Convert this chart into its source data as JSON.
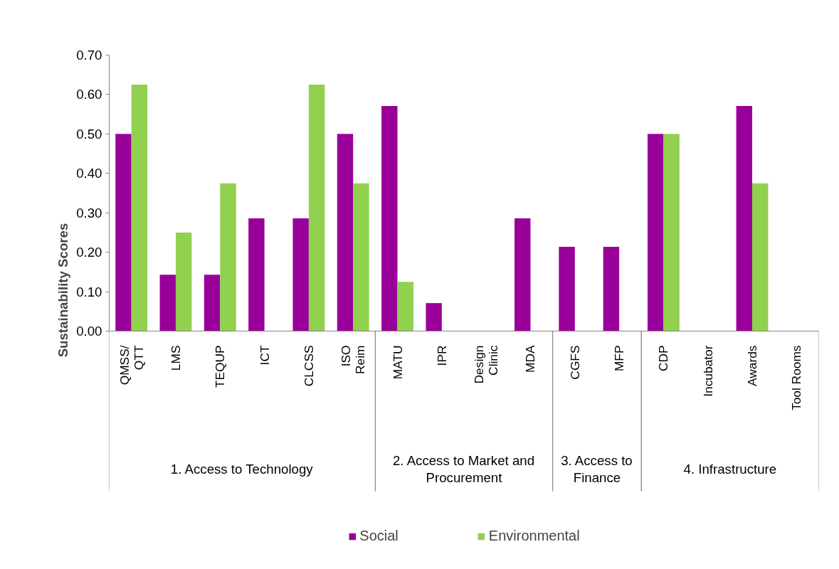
{
  "chart_data": {
    "type": "bar",
    "ylabel": "Sustainability Scores",
    "categories": [
      "QMSS/\nQTT",
      "LMS",
      "TEQUP",
      "ICT",
      "CLCSS",
      "ISO\nReim",
      "MATU",
      "IPR",
      "Design\nClinic",
      "MDA",
      "CGFS",
      "MFP",
      "CDP",
      "Incubator",
      "Awards",
      "Tool Rooms"
    ],
    "series": [
      {
        "name": "Social",
        "color": "#990099",
        "values": [
          0.5,
          0.143,
          0.143,
          0.286,
          0.286,
          0.5,
          0.571,
          0.071,
          0,
          0.286,
          0.214,
          0.214,
          0.5,
          0,
          0.571,
          0
        ]
      },
      {
        "name": "Environmental",
        "color": "#92d050",
        "values": [
          0.625,
          0.25,
          0.375,
          0,
          0.625,
          0.375,
          0.125,
          0,
          0,
          0,
          0,
          0,
          0.5,
          0,
          0.375,
          0
        ]
      }
    ],
    "annotations": [
      "1. Access to Technology",
      "2. Access to Market and\nProcurement",
      "3. Access to\nFinance",
      "4. Infrastructure"
    ],
    "ylim": [
      0,
      0.7
    ],
    "yticks": [
      {
        "value": 0,
        "label": "0.00"
      },
      {
        "value": 0.1,
        "label": "0.10"
      },
      {
        "value": 0.2,
        "label": "0.20"
      },
      {
        "value": 0.3,
        "label": "0.30"
      },
      {
        "value": 0.4,
        "label": "0.40"
      },
      {
        "value": 0.5,
        "label": "0.50"
      },
      {
        "value": 0.6,
        "label": "0.60"
      },
      {
        "value": 0.7,
        "label": "0.70"
      }
    ],
    "legend": "bottom",
    "grid": false
  }
}
